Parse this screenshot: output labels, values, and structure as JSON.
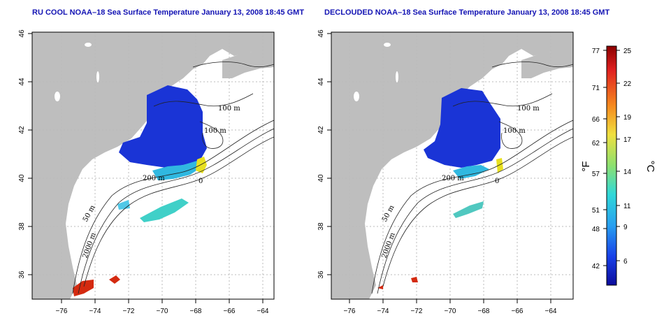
{
  "maps": [
    {
      "title": "RU COOL NOAA–18 Sea Surface Temperature January 13, 2008 18:45 GMT",
      "contour_labels": [
        "100 m",
        "100 m",
        "200 m",
        "50 m",
        "2000 m",
        "0"
      ]
    },
    {
      "title": "DECLOUDED NOAA–18 Sea Surface Temperature January 13, 2008 18:45 GMT",
      "contour_labels": [
        "100 m",
        "100 m",
        "200 m",
        "50 m",
        "2000 m",
        "0"
      ]
    }
  ],
  "axes": {
    "lon_ticks": [
      "−76",
      "−74",
      "−72",
      "−70",
      "−68",
      "−66",
      "−64"
    ],
    "lat_ticks": [
      "36",
      "38",
      "40",
      "42",
      "44",
      "46"
    ]
  },
  "colorbar": {
    "fahrenheit_label": "°F",
    "celsius_label": "°C",
    "fahrenheit_ticks": [
      "77",
      "71",
      "66",
      "62",
      "57",
      "51",
      "48",
      "42"
    ],
    "celsius_ticks": [
      "25",
      "22",
      "19",
      "17",
      "14",
      "11",
      "9",
      "6"
    ],
    "colors": [
      "#8b0000",
      "#e02020",
      "#f58a1e",
      "#f0e040",
      "#8ce070",
      "#30d8d8",
      "#28a0f0",
      "#1840e8",
      "#0c0c9c"
    ]
  },
  "colors": {
    "land": "#bebebe",
    "ocean": "#ffffff",
    "sst_cold": "#1a34d6",
    "sst_mid": "#30d8c8",
    "sst_warm": "#e8e020",
    "sst_hot": "#d42a10"
  }
}
